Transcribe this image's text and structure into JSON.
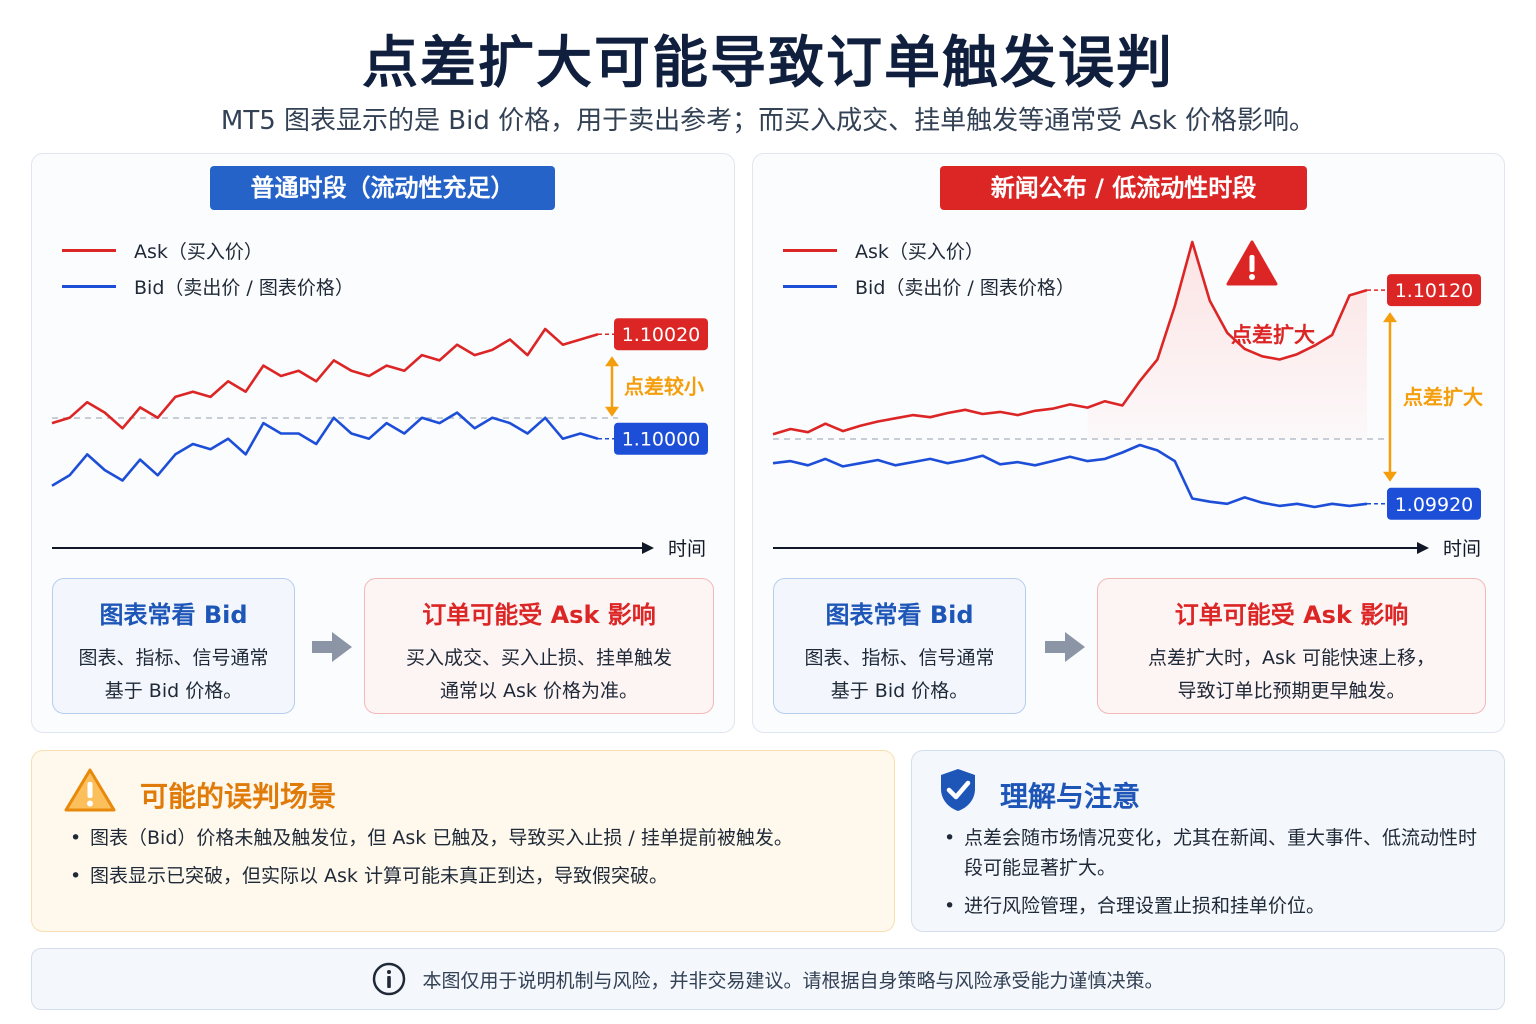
{
  "header": {
    "title": "点差扩大可能导致订单触发误判",
    "subtitle": "MT5 图表显示的是 Bid 价格，用于卖出参考；而买入成交、挂单触发等通常受 Ask 价格影响。"
  },
  "legend": {
    "ask": "Ask（买入价）",
    "bid": "Bid（卖出价 / 图表价格）"
  },
  "colors": {
    "ask": "#dc2626",
    "bid": "#1d4ed8",
    "spread_label": "#f59e0b",
    "shade": "#fde2e2"
  },
  "chart_data": [
    {
      "type": "line",
      "panel_title": "普通时段（流动性充足）",
      "x_axis_label": "时间",
      "ask_price_label": "1.10020",
      "bid_price_label": "1.10000",
      "spread_label": "点差较小",
      "series": [
        {
          "name": "Ask（买入价）",
          "values": [
            1.10003,
            1.10004,
            1.10007,
            1.10005,
            1.10002,
            1.10006,
            1.10004,
            1.10008,
            1.10009,
            1.10008,
            1.10011,
            1.10009,
            1.10014,
            1.10012,
            1.10013,
            1.10011,
            1.10015,
            1.10013,
            1.10012,
            1.10014,
            1.10013,
            1.10016,
            1.10015,
            1.10018,
            1.10016,
            1.10017,
            1.10019,
            1.10016,
            1.10021,
            1.10018,
            1.10019,
            1.1002
          ]
        },
        {
          "name": "Bid（卖出价 / 图表价格）",
          "values": [
            1.09991,
            1.09993,
            1.09997,
            1.09994,
            1.09992,
            1.09996,
            1.09993,
            1.09997,
            1.09999,
            1.09998,
            1.1,
            1.09997,
            1.10003,
            1.10001,
            1.10001,
            1.09999,
            1.10004,
            1.10001,
            1.1,
            1.10003,
            1.10001,
            1.10004,
            1.10003,
            1.10005,
            1.10002,
            1.10004,
            1.10003,
            1.10001,
            1.10004,
            1.1,
            1.10001,
            1.1
          ]
        }
      ]
    },
    {
      "type": "line",
      "panel_title": "新闻公布 / 低流动性时段",
      "x_axis_label": "时间",
      "ask_price_label": "1.10120",
      "bid_price_label": "1.09920",
      "spread_label": "点差扩大",
      "spike_label": "点差扩大",
      "series": [
        {
          "name": "Ask（买入价）",
          "values": [
            1.09985,
            1.0999,
            1.09987,
            1.09995,
            1.09988,
            1.09993,
            1.09997,
            1.1,
            1.10003,
            1.10001,
            1.10005,
            1.10008,
            1.10004,
            1.10006,
            1.10003,
            1.10007,
            1.10009,
            1.10013,
            1.1001,
            1.10016,
            1.10012,
            1.10035,
            1.10055,
            1.10105,
            1.10165,
            1.1011,
            1.1008,
            1.10065,
            1.10058,
            1.10055,
            1.1006,
            1.10068,
            1.10078,
            1.10115,
            1.1012
          ]
        },
        {
          "name": "Bid（卖出价 / 图表价格）",
          "values": [
            1.09958,
            1.0996,
            1.09956,
            1.09962,
            1.09955,
            1.09958,
            1.09961,
            1.09956,
            1.09959,
            1.09962,
            1.09958,
            1.09961,
            1.09965,
            1.09957,
            1.09959,
            1.09956,
            1.0996,
            1.09964,
            1.0996,
            1.09962,
            1.09968,
            1.09975,
            1.0997,
            1.0996,
            1.09925,
            1.09922,
            1.0992,
            1.09926,
            1.09921,
            1.09918,
            1.0992,
            1.09917,
            1.0992,
            1.09918,
            1.0992
          ]
        }
      ]
    }
  ],
  "boxes": {
    "bid_head": "图表常看 Bid",
    "bid_line1": "图表、指标、信号通常",
    "bid_line2": "基于 Bid 价格。",
    "ask_head": "订单可能受 Ask 影响",
    "left_ask_line1": "买入成交、买入止损、挂单触发",
    "left_ask_line2": "通常以 Ask 价格为准。",
    "right_ask_line1": "点差扩大时，Ask 可能快速上移，",
    "right_ask_line2": "导致订单比预期更早触发。"
  },
  "warning": {
    "title": "可能的误判场景",
    "bullet1": "图表（Bid）价格未触及触发位，但 Ask 已触及，导致买入止损 / 挂单提前被触发。",
    "bullet2": "图表显示已突破，但实际以 Ask 计算可能未真正到达，导致假突破。"
  },
  "note": {
    "title": "理解与注意",
    "bullet1": "点差会随市场情况变化，尤其在新闻、重大事件、低流动性时段可能显著扩大。",
    "bullet2": "进行风险管理，合理设置止损和挂单价位。"
  },
  "footer": {
    "text": "本图仅用于说明机制与风险，并非交易建议。请根据自身策略与风险承受能力谨慎决策。"
  }
}
